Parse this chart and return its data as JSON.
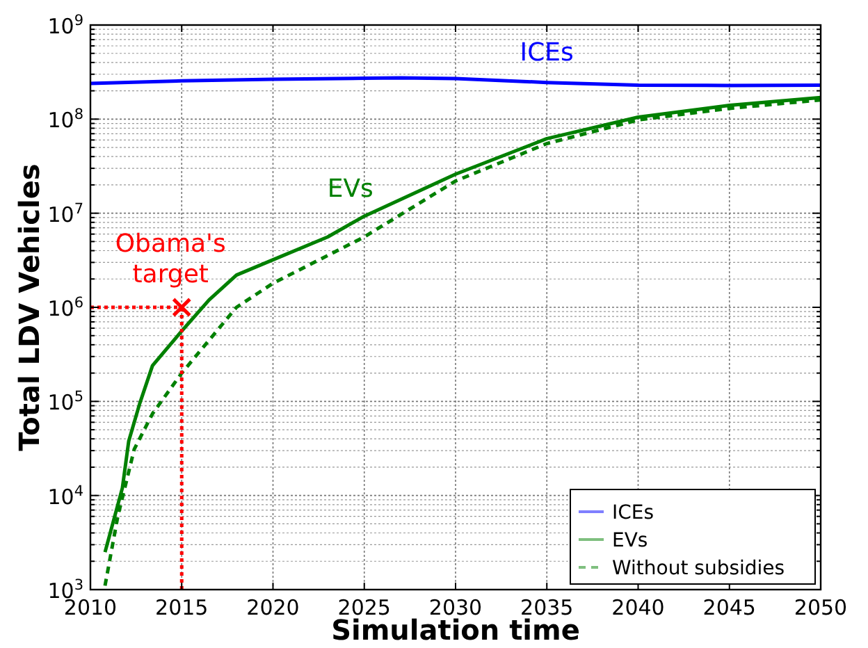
{
  "chart_data": {
    "type": "line",
    "xlabel": "Simulation time",
    "ylabel": "Total LDV Vehicles",
    "xlim": [
      2010,
      2050
    ],
    "xticks": [
      2010,
      2015,
      2020,
      2025,
      2030,
      2035,
      2040,
      2045,
      2050
    ],
    "ylim": [
      1000,
      1000000000
    ],
    "yticks": [
      {
        "value": 1000,
        "label": "10$^{3}$"
      },
      {
        "value": 10000,
        "label": "10$^{4}$"
      },
      {
        "value": 100000,
        "label": "10$^{5}$"
      },
      {
        "value": 1000000,
        "label": "10$^{6}$"
      },
      {
        "value": 10000000,
        "label": "10$^{7}$"
      },
      {
        "value": 100000000,
        "label": "10$^{8}$"
      },
      {
        "value": 1000000000,
        "label": "10$^{9}$"
      }
    ],
    "log": true,
    "grid": true,
    "legend": "bottom right",
    "marker": "none",
    "series": [
      {
        "name": "ICEs",
        "color": "#0000ff",
        "line_style": "solid",
        "x": [
          2010,
          2015,
          2020,
          2025,
          2027,
          2030,
          2035,
          2040,
          2045,
          2050
        ],
        "values": [
          240000000,
          255000000,
          265000000,
          272000000,
          275000000,
          270000000,
          245000000,
          230000000,
          228000000,
          230000000
        ]
      },
      {
        "name": "EVs",
        "color": "#008000",
        "line_style": "solid",
        "x": [
          2010.8,
          2011.75,
          2012.1,
          2012.7,
          2013.4,
          2015,
          2016.5,
          2018,
          2020,
          2023,
          2025,
          2030,
          2035,
          2040,
          2045,
          2050
        ],
        "values": [
          2500,
          12000,
          38000,
          95000,
          240000,
          560000,
          1200000,
          2200000,
          3200000,
          5600000,
          9300000,
          26000000,
          62000000,
          105000000,
          140000000,
          170000000
        ]
      },
      {
        "name": "Without subsidies",
        "color": "#008000",
        "line_style": "dashed",
        "x": [
          2010.8,
          2011.5,
          2012.4,
          2013.4,
          2015,
          2018,
          2020,
          2025,
          2030,
          2035,
          2040,
          2045,
          2050
        ],
        "values": [
          1100,
          6000,
          31000,
          74000,
          200000,
          1000000,
          1800000,
          5600000,
          22000000,
          55000000,
          98000000,
          130000000,
          160000000
        ]
      },
      {
        "color": "#ff0000",
        "line_style": "dotted",
        "x": [
          2010,
          2015
        ],
        "values": [
          1000000,
          1000000
        ]
      },
      {
        "color": "#ff0000",
        "line_style": "dotted",
        "x": [
          2015,
          2015
        ],
        "values": [
          1000,
          1000000
        ]
      },
      {
        "type": "scatter",
        "color": "#ff0000",
        "marker": "cross",
        "x": [
          2015
        ],
        "values": [
          1000000
        ]
      }
    ],
    "annotations": [
      {
        "text": "Obama's target",
        "x": 2015,
        "y": 1000000
      }
    ]
  }
}
